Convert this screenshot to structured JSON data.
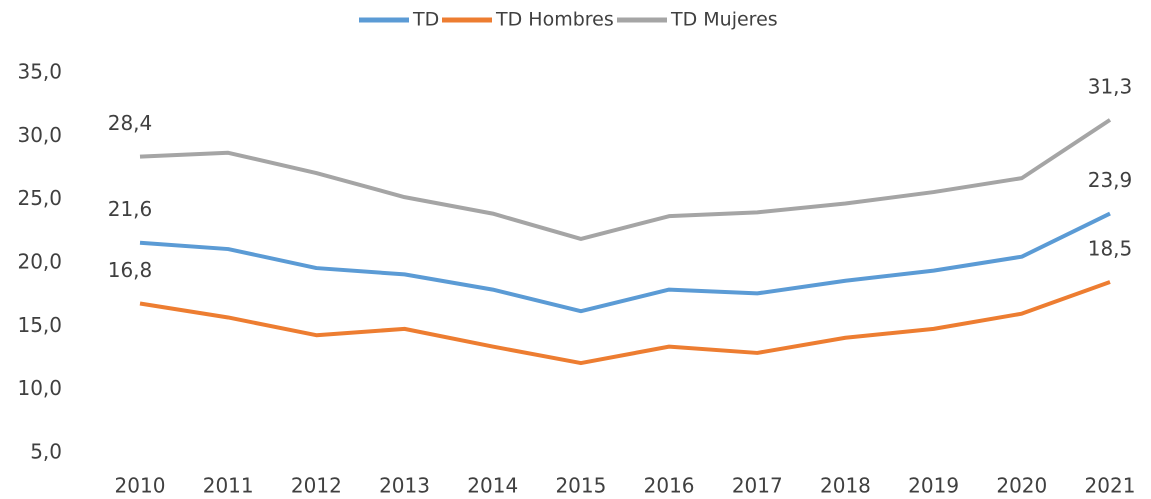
{
  "chart_data": {
    "type": "line",
    "categories": [
      "2010",
      "2011",
      "2012",
      "2013",
      "2014",
      "2015",
      "2016",
      "2017",
      "2018",
      "2019",
      "2020",
      "2021"
    ],
    "series": [
      {
        "name": "TD",
        "color": "#5b9bd5",
        "values": [
          21.6,
          21.1,
          19.6,
          19.1,
          17.9,
          16.2,
          17.9,
          17.6,
          18.6,
          19.4,
          20.5,
          23.9
        ],
        "value_labels": [
          "21,6",
          null,
          null,
          null,
          null,
          null,
          null,
          null,
          null,
          null,
          null,
          "23,9"
        ]
      },
      {
        "name": "TD Hombres",
        "color": "#ed7d31",
        "values": [
          16.8,
          15.7,
          14.3,
          14.8,
          13.4,
          12.1,
          13.4,
          12.9,
          14.1,
          14.8,
          16.0,
          18.5
        ],
        "value_labels": [
          "16,8",
          null,
          null,
          null,
          null,
          null,
          null,
          null,
          null,
          null,
          null,
          "18,5"
        ]
      },
      {
        "name": "TD Mujeres",
        "color": "#a5a5a5",
        "values": [
          28.4,
          28.7,
          27.1,
          25.2,
          23.9,
          21.9,
          23.7,
          24.0,
          24.7,
          25.6,
          26.7,
          31.3
        ],
        "value_labels": [
          "28,4",
          null,
          null,
          null,
          null,
          null,
          null,
          null,
          null,
          null,
          null,
          "31,3"
        ]
      }
    ],
    "ylim": [
      5,
      35
    ],
    "yticks": [
      {
        "value": 5,
        "label": "5,0"
      },
      {
        "value": 10,
        "label": "10,0"
      },
      {
        "value": 15,
        "label": "15,0"
      },
      {
        "value": 20,
        "label": "20,0"
      },
      {
        "value": 25,
        "label": "25,0"
      },
      {
        "value": 30,
        "label": "30,0"
      },
      {
        "value": 35,
        "label": "35,0"
      }
    ],
    "legend": "top",
    "grid": false
  }
}
